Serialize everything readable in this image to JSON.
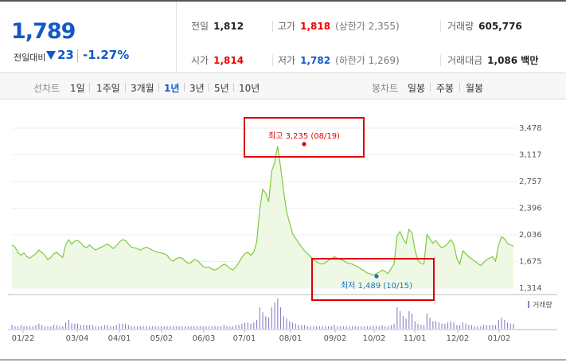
{
  "summary": {
    "price": "1,789",
    "change_label": "전일대비",
    "change_value": "23",
    "change_rate": "-1.27%"
  },
  "stats": {
    "prev_close": {
      "label": "전일",
      "value": "1,812"
    },
    "high": {
      "label": "고가",
      "value": "1,818",
      "sub": "(상한가 2,355)"
    },
    "volume": {
      "label": "거래량",
      "value": "605,776"
    },
    "open": {
      "label": "시가",
      "value": "1,814"
    },
    "low": {
      "label": "저가",
      "value": "1,782",
      "sub": "(하한가 1,269)"
    },
    "turnover": {
      "label": "거래대금",
      "value": "1,086 백만"
    }
  },
  "period_bar": {
    "line_chart_label": "선차트",
    "periods": [
      "1일",
      "1주일",
      "3개월",
      "1년",
      "3년",
      "5년",
      "10년"
    ],
    "active_period": "1년",
    "candle_chart_label": "봉차트",
    "candles": [
      "일봉",
      "주봉",
      "월봉"
    ]
  },
  "colors": {
    "price_line": "#7ccc3a",
    "area_fill": "#eef8e4",
    "volume_bar": "#8a7fc8",
    "highlight_box": "#e00000",
    "high_marker": "#e00000",
    "low_marker": "#1a73c8",
    "down": "#1259c8",
    "up": "#e00000"
  },
  "chart_data": {
    "type": "area",
    "ylim": [
      1314,
      3478
    ],
    "y_ticks": [
      "3,478",
      "3,117",
      "2,757",
      "2,396",
      "2,036",
      "1,675",
      "1,314"
    ],
    "x_ticks": [
      "01/22",
      "03/04",
      "04/01",
      "05/02",
      "06/03",
      "07/01",
      "08/01",
      "09/02",
      "10/02",
      "11/01",
      "12/02",
      "01/02"
    ],
    "max_annotation": "최고 3,235 (08/19)",
    "min_annotation": "최저 1,489 (10/15)",
    "volume_legend": "거래량",
    "series": [
      {
        "values": [
          1900,
          1870,
          1800,
          1760,
          1790,
          1740,
          1720,
          1750,
          1780,
          1830,
          1800,
          1760,
          1700,
          1730,
          1780,
          1800,
          1760,
          1730,
          1900,
          1970,
          1910,
          1950,
          1960,
          1930,
          1880,
          1860,
          1900,
          1860,
          1830,
          1850,
          1870,
          1890,
          1910,
          1880,
          1850,
          1890,
          1940,
          1970,
          1960,
          1910,
          1870,
          1860,
          1850,
          1830,
          1850,
          1870,
          1850,
          1830,
          1810,
          1800,
          1790,
          1780,
          1760,
          1700,
          1680,
          1710,
          1730,
          1720,
          1680,
          1650,
          1660,
          1700,
          1690,
          1650,
          1610,
          1590,
          1600,
          1570,
          1560,
          1580,
          1610,
          1640,
          1620,
          1580,
          1560,
          1600,
          1660,
          1730,
          1780,
          1800,
          1760,
          1800,
          1940,
          2380,
          2650,
          2600,
          2480,
          2900,
          3010,
          3235,
          2950,
          2620,
          2350,
          2200,
          2050,
          1990,
          1930,
          1870,
          1820,
          1780,
          1740,
          1700,
          1670,
          1650,
          1640,
          1660,
          1690,
          1710,
          1740,
          1720,
          1700,
          1690,
          1660,
          1650,
          1640,
          1620,
          1600,
          1570,
          1550,
          1520,
          1510,
          1489,
          1510,
          1530,
          1560,
          1540,
          1510,
          1580,
          1640,
          2020,
          2080,
          1980,
          1920,
          2110,
          2060,
          1830,
          1690,
          1650,
          1640,
          2040,
          1980,
          1920,
          1960,
          1900,
          1860,
          1880,
          1920,
          1970,
          1910,
          1720,
          1640,
          1820,
          1780,
          1740,
          1710,
          1680,
          1650,
          1620,
          1660,
          1700,
          1720,
          1740,
          1680,
          1900,
          2010,
          1980,
          1920,
          1900,
          1880
        ]
      },
      {
        "name": "거래량",
        "values": [
          3,
          2,
          2,
          3,
          2,
          2,
          2,
          2,
          3,
          4,
          3,
          2,
          2,
          2,
          3,
          3,
          2,
          2,
          5,
          7,
          4,
          4,
          4,
          3,
          3,
          3,
          3,
          3,
          2,
          2,
          2,
          3,
          3,
          2,
          2,
          3,
          4,
          4,
          4,
          3,
          2,
          2,
          2,
          2,
          2,
          2,
          2,
          2,
          2,
          2,
          2,
          2,
          2,
          2,
          2,
          2,
          2,
          2,
          2,
          2,
          2,
          2,
          2,
          2,
          2,
          2,
          2,
          2,
          2,
          2,
          2,
          3,
          2,
          2,
          2,
          3,
          3,
          4,
          5,
          5,
          4,
          5,
          7,
          17,
          13,
          10,
          9,
          17,
          21,
          24,
          17,
          10,
          8,
          6,
          5,
          4,
          3,
          3,
          3,
          2,
          2,
          2,
          2,
          2,
          2,
          2,
          2,
          2,
          3,
          2,
          2,
          2,
          2,
          2,
          2,
          2,
          2,
          2,
          2,
          2,
          2,
          2,
          2,
          2,
          3,
          2,
          2,
          3,
          4,
          17,
          14,
          10,
          8,
          14,
          12,
          6,
          4,
          3,
          3,
          12,
          9,
          6,
          6,
          5,
          4,
          4,
          5,
          6,
          5,
          3,
          3,
          5,
          4,
          3,
          3,
          2,
          2,
          2,
          3,
          3,
          3,
          3,
          3,
          7,
          9,
          7,
          5,
          4,
          4
        ]
      }
    ]
  }
}
